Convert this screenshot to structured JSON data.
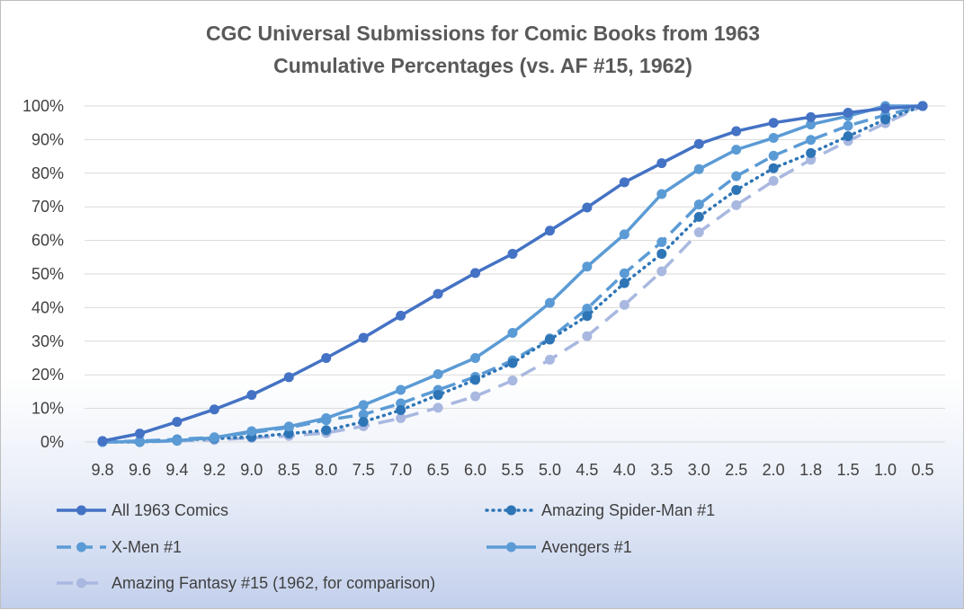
{
  "chart_data": {
    "type": "line",
    "title": "CGC Universal Submissions for Comic Books from 1963",
    "subtitle": "Cumulative Percentages (vs. AF #15, 1962)",
    "xlabel": "",
    "ylabel": "",
    "categories": [
      "9.8",
      "9.6",
      "9.4",
      "9.2",
      "9.0",
      "8.5",
      "8.0",
      "7.5",
      "7.0",
      "6.5",
      "6.0",
      "5.5",
      "5.0",
      "4.5",
      "4.0",
      "3.5",
      "3.0",
      "2.5",
      "2.0",
      "1.8",
      "1.5",
      "1.0",
      "0.5"
    ],
    "ylim": [
      0,
      100
    ],
    "yticks": [
      "0%",
      "10%",
      "20%",
      "30%",
      "40%",
      "50%",
      "60%",
      "70%",
      "80%",
      "90%",
      "100%"
    ],
    "grid": true,
    "legend_position": "bottom",
    "series": [
      {
        "name": "All 1963 Comics",
        "color": "#4472c4",
        "dash": "solid",
        "values": [
          0.3,
          2.5,
          6,
          9.7,
          14,
          19.3,
          25,
          31,
          37.6,
          44.1,
          50.3,
          56,
          62.9,
          69.8,
          77.3,
          83,
          88.7,
          92.5,
          95,
          96.7,
          98,
          99.3,
          100
        ]
      },
      {
        "name": "Amazing Spider-Man #1",
        "color": "#2e75b6",
        "dash": "dot",
        "values": [
          0,
          0,
          0.5,
          1,
          1.5,
          2.5,
          3.5,
          6,
          9.5,
          14,
          18.5,
          23.5,
          30.5,
          37.5,
          47.3,
          56,
          67,
          75,
          81.5,
          86,
          91,
          96,
          100
        ]
      },
      {
        "name": "X-Men #1",
        "color": "#5b9bd5",
        "dash": "dash",
        "values": [
          0.1,
          0.3,
          0.8,
          1.4,
          2.8,
          4.3,
          6.5,
          8.2,
          11.5,
          15.5,
          19.4,
          24.3,
          30.8,
          39.7,
          50.2,
          59.5,
          70.7,
          79.1,
          85.2,
          89.9,
          94.1,
          97.3,
          100
        ]
      },
      {
        "name": "Avengers #1",
        "color": "#5b9bd5",
        "dash": "solid",
        "values": [
          0,
          0.1,
          0.4,
          1.3,
          3.2,
          4.6,
          7.1,
          11,
          15.5,
          20.2,
          25,
          32.5,
          41.4,
          52.2,
          61.8,
          73.8,
          81.2,
          87,
          90.5,
          94.5,
          97,
          100,
          100
        ]
      },
      {
        "name": "Amazing Fantasy #15 (1962, for comparison)",
        "color": "#a9b8e0",
        "dash": "longdash",
        "values": [
          0,
          0,
          0.3,
          0.6,
          1.2,
          1.8,
          2.7,
          4.7,
          7.1,
          10.2,
          13.6,
          18.3,
          24.5,
          31.5,
          40.8,
          50.8,
          62.4,
          70.5,
          77.7,
          84,
          89.6,
          94.9,
          100
        ]
      }
    ]
  }
}
